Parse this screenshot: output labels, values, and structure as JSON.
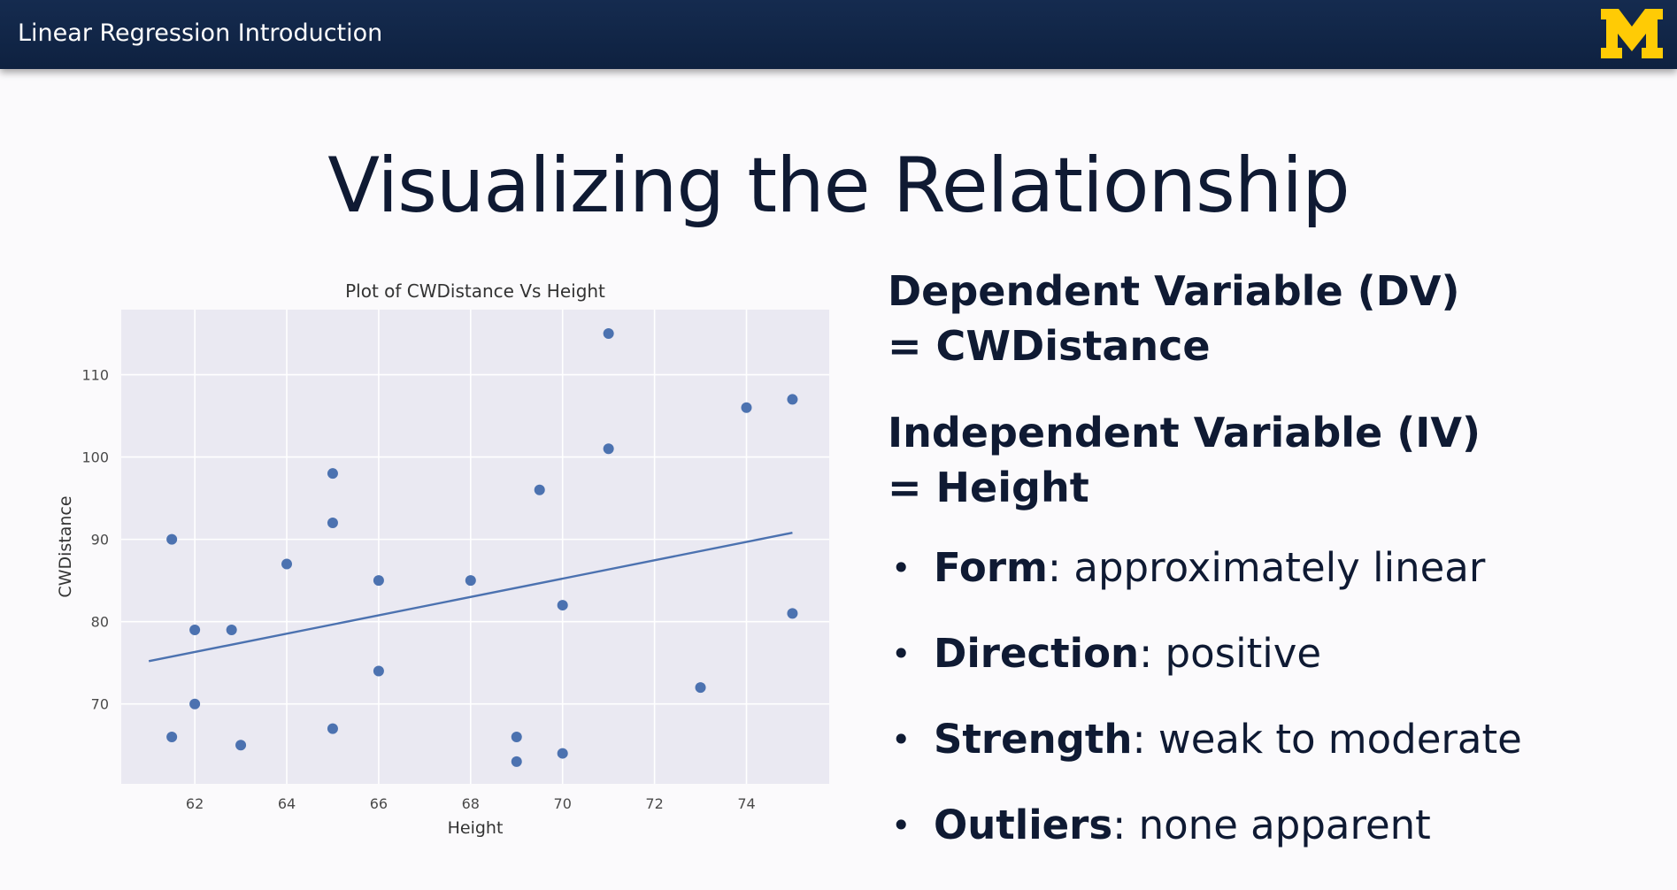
{
  "header": {
    "title": "Linear Regression Introduction",
    "logo_text": "M",
    "logo_color": "#ffcb05"
  },
  "slide": {
    "title": "Visualizing the Relationship"
  },
  "right_panel": {
    "dv_line1": "Dependent Variable (DV)",
    "dv_line2": "= CWDistance",
    "iv_line1": "Independent Variable (IV)",
    "iv_line2": "= Height",
    "bullets": [
      {
        "term": "Form",
        "rest": ": approximately linear"
      },
      {
        "term": "Direction",
        "rest": ": positive"
      },
      {
        "term": "Strength",
        "rest": ": weak to moderate"
      },
      {
        "term": "Outliers",
        "rest": ": none apparent"
      }
    ]
  },
  "chart_data": {
    "type": "scatter",
    "title": "Plot of CWDistance Vs Height",
    "xlabel": "Height",
    "ylabel": "CWDistance",
    "xlim": [
      60.4,
      75.8
    ],
    "ylim": [
      60.3,
      117.9
    ],
    "xticks": [
      62,
      64,
      66,
      68,
      70,
      72,
      74
    ],
    "yticks": [
      70,
      80,
      90,
      100,
      110
    ],
    "grid": true,
    "background": "#eae9f2",
    "point_color": "#4c72b0",
    "points": [
      [
        61.5,
        90
      ],
      [
        61.5,
        66
      ],
      [
        62,
        79
      ],
      [
        62,
        70
      ],
      [
        62.8,
        79
      ],
      [
        63,
        65
      ],
      [
        64,
        87
      ],
      [
        65,
        98
      ],
      [
        65,
        92
      ],
      [
        65,
        67
      ],
      [
        66,
        85
      ],
      [
        66,
        74
      ],
      [
        68,
        85
      ],
      [
        69,
        66
      ],
      [
        69,
        63
      ],
      [
        69.5,
        96
      ],
      [
        70,
        82
      ],
      [
        70,
        64
      ],
      [
        71,
        115
      ],
      [
        71,
        101
      ],
      [
        73,
        72
      ],
      [
        74,
        106
      ],
      [
        75,
        107
      ],
      [
        75,
        81
      ]
    ],
    "fit_line": {
      "x": [
        61,
        75
      ],
      "y": [
        75.2,
        90.8
      ]
    }
  }
}
